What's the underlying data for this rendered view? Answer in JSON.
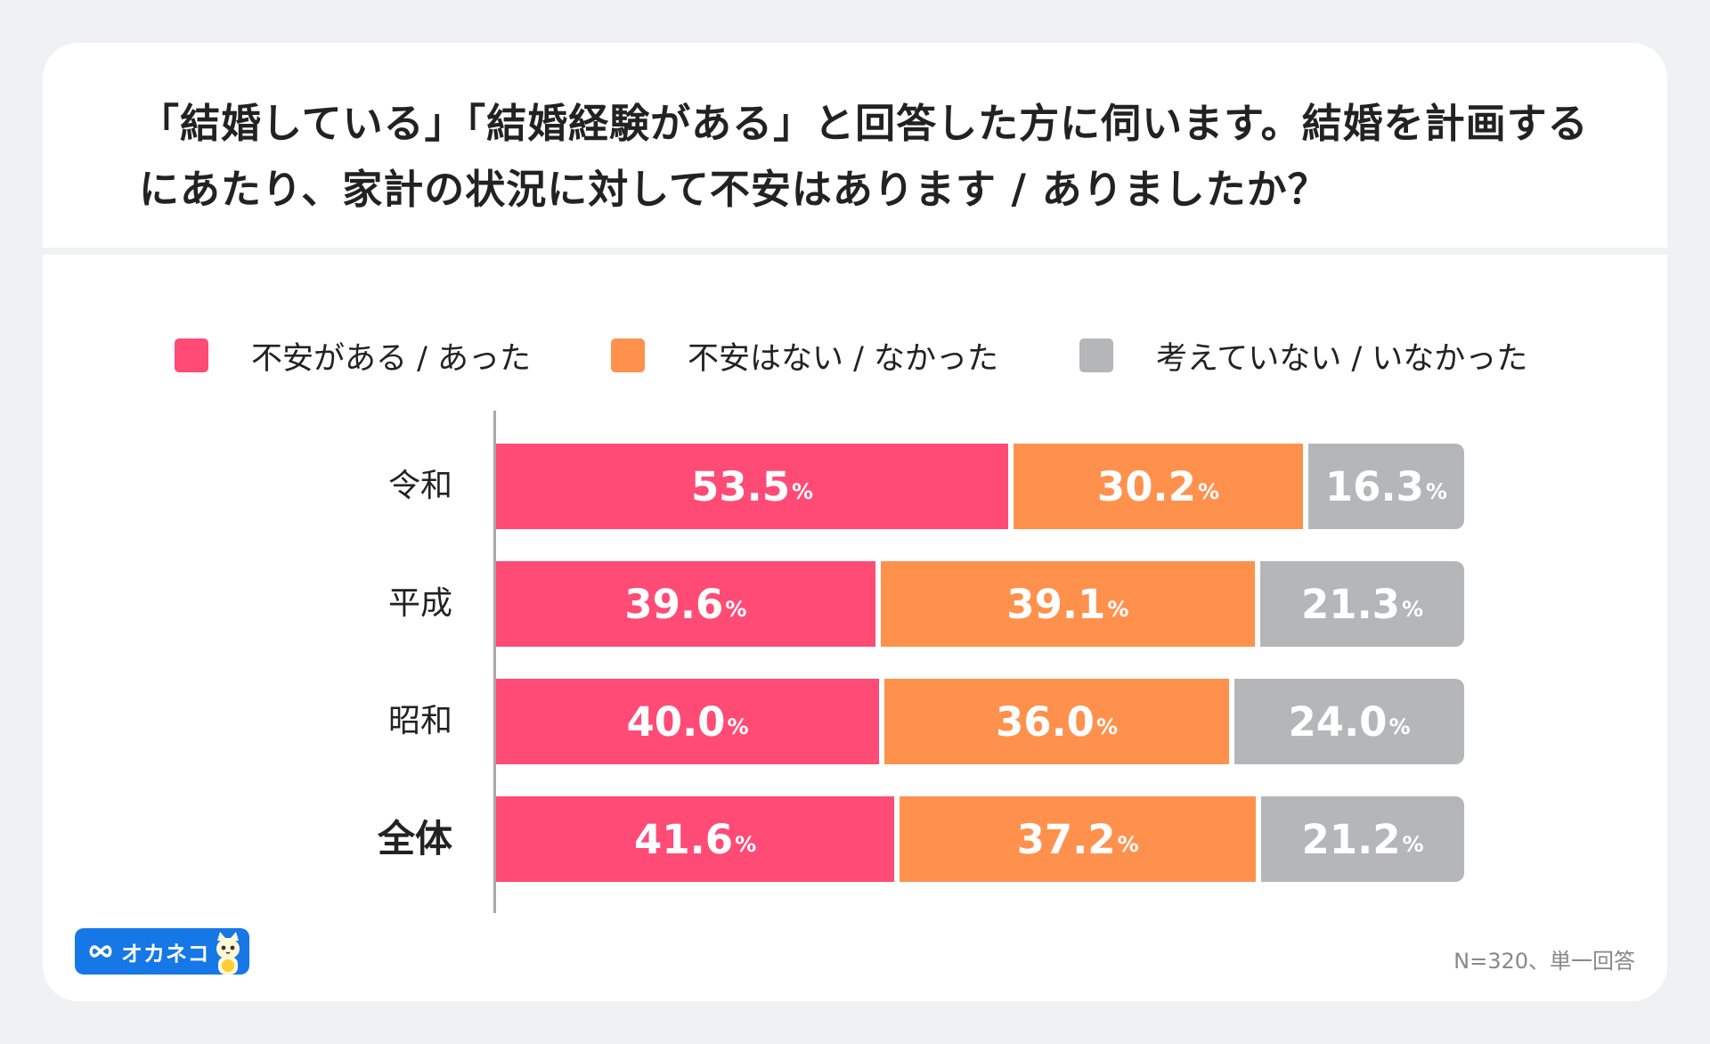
{
  "title": "「結婚している」「結婚経験がある」と回答した方に伺います。結婚を計画するにあたり、家計の状況に対して不安はあります / ありましたか？",
  "note": "N=320、単一回答",
  "logo_text": "オカネコ",
  "chart_data": {
    "type": "bar",
    "orientation": "horizontal",
    "stacked": true,
    "title": "「結婚している」「結婚経験がある」と回答した方に伺います。結婚を計画するにあたり、家計の状況に対して不安はあります / ありましたか？",
    "categories": [
      "令和",
      "平成",
      "昭和",
      "全体"
    ],
    "series": [
      {
        "name": "不安がある / あった",
        "color": "#ff4b75",
        "values": [
          53.5,
          39.6,
          40.0,
          41.6
        ]
      },
      {
        "name": "不安はない / なかった",
        "color": "#ff914d",
        "values": [
          30.2,
          39.1,
          36.0,
          37.2
        ]
      },
      {
        "name": "考えていない / いなかった",
        "color": "#b4b6b8",
        "values": [
          16.3,
          21.3,
          24.0,
          21.2
        ]
      }
    ],
    "xlim": [
      0,
      100
    ],
    "unit": "%",
    "legend": "top",
    "grid": false,
    "emphasized_category": "全体",
    "highlight_color": "#ffe03d"
  }
}
